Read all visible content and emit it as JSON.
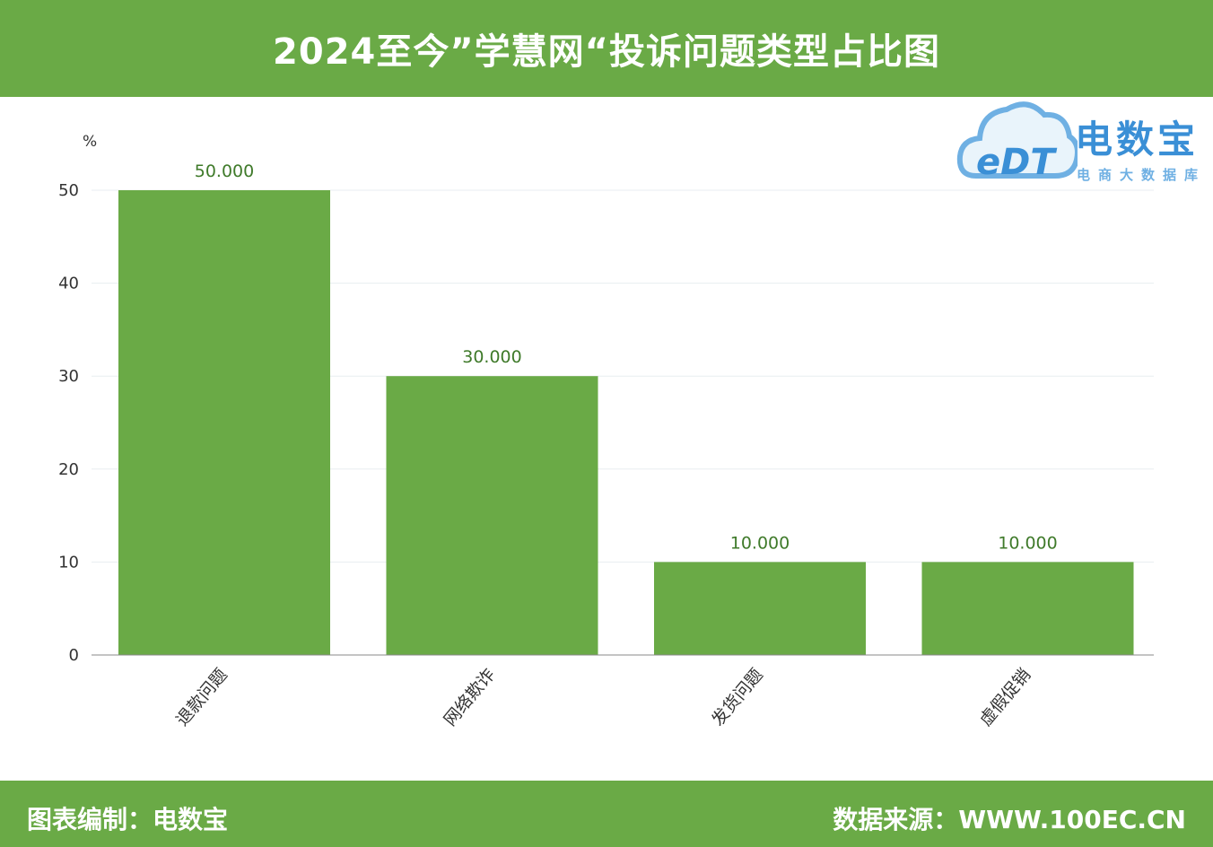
{
  "header": {
    "title": "2024至今”学慧网“投诉问题类型占比图"
  },
  "footer": {
    "left": "图表编制：电数宝",
    "right": "数据来源：WWW.100EC.CN"
  },
  "logo": {
    "mark": "eDT",
    "brand": "电数宝",
    "subtitle": "电商大数据库"
  },
  "colors": {
    "header": "#6aaa46",
    "bar": "#6aaa46",
    "grid": "#e8eef0"
  },
  "chart_data": {
    "type": "bar",
    "title": "2024至今”学慧网“投诉问题类型占比图",
    "ylabel": "%",
    "xlabel": "",
    "categories": [
      "退款问题",
      "网络欺诈",
      "发货问题",
      "虚假促销"
    ],
    "values": [
      50,
      30,
      10,
      10
    ],
    "data_labels": [
      "50.000",
      "30.000",
      "10.000",
      "10.000"
    ],
    "ylim": [
      0,
      50
    ],
    "yticks": [
      0,
      10,
      20,
      30,
      40,
      50
    ],
    "grid": true,
    "legend": "none"
  }
}
